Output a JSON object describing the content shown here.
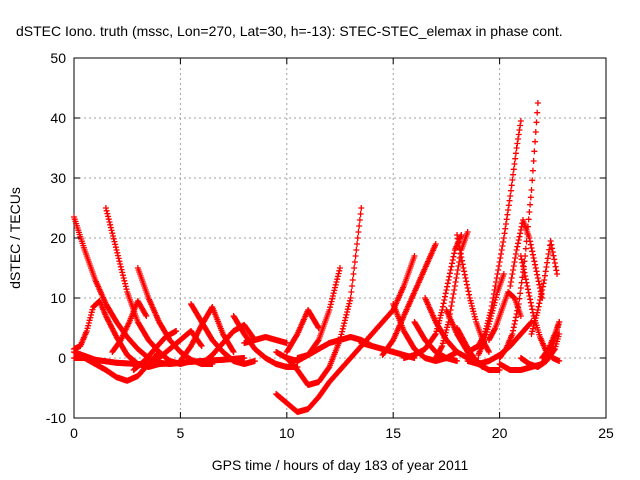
{
  "chart_data": {
    "type": "scatter",
    "title": "dSTEC Iono. truth (mssc, Lon=270, Lat=30, h=-13): STEC-STEC_elemax in phase cont.",
    "xlabel": "GPS time / hours of day 183 of year 2011",
    "ylabel": "dSTEC  / TECUs",
    "xlim": [
      0,
      25
    ],
    "ylim": [
      -10,
      50
    ],
    "xticks": [
      0,
      5,
      10,
      15,
      20,
      25
    ],
    "yticks": [
      -10,
      0,
      10,
      20,
      30,
      40,
      50
    ],
    "grid": true,
    "marker": "plus",
    "color": "#ff0000",
    "series": [
      {
        "x": [
          0.0,
          0.5,
          1.0,
          1.5,
          2.0,
          2.5,
          3.0,
          3.5,
          4.0,
          4.5,
          5.0
        ],
        "y": [
          23.5,
          18.0,
          13.0,
          9.0,
          6.0,
          3.5,
          1.5,
          0.0,
          -0.8,
          -1.0,
          -0.8
        ]
      },
      {
        "x": [
          0.0,
          0.3,
          0.6,
          0.9,
          1.2,
          1.5,
          2.0,
          2.5,
          3.0,
          3.5,
          4.0
        ],
        "y": [
          1.5,
          2.0,
          4.5,
          8.5,
          9.5,
          7.0,
          3.5,
          0.5,
          -1.0,
          -1.5,
          -1.0
        ]
      },
      {
        "x": [
          0.0,
          0.5,
          1.0,
          1.5,
          2.0,
          2.5,
          3.0,
          3.5,
          4.0
        ],
        "y": [
          0.0,
          0.0,
          -1.0,
          -2.0,
          -3.2,
          -3.8,
          -3.0,
          -1.0,
          1.0
        ]
      },
      {
        "x": [
          0.0,
          1.0,
          2.0,
          3.0,
          4.0,
          5.0,
          6.0,
          7.0,
          8.0
        ],
        "y": [
          1.0,
          -0.3,
          -0.8,
          -1.0,
          -1.0,
          -0.8,
          -0.5,
          -0.3,
          0.0
        ]
      },
      {
        "x": [
          1.5,
          2.0,
          2.5,
          3.0,
          3.5,
          4.0,
          4.5,
          5.0,
          5.5
        ],
        "y": [
          25.0,
          18.0,
          11.0,
          6.0,
          3.0,
          1.0,
          -0.5,
          -1.0,
          -0.5
        ]
      },
      {
        "x": [
          1.8,
          2.2,
          2.6,
          3.0,
          3.4
        ],
        "y": [
          1.0,
          3.0,
          6.0,
          9.5,
          7.0
        ]
      },
      {
        "x": [
          3.0,
          3.5,
          4.0,
          4.5,
          5.0,
          5.5,
          6.0,
          6.5
        ],
        "y": [
          15.0,
          10.0,
          6.0,
          3.0,
          1.0,
          -0.3,
          -1.0,
          -1.0
        ]
      },
      {
        "x": [
          2.8,
          3.3,
          3.8,
          4.3,
          4.8
        ],
        "y": [
          -2.0,
          -0.5,
          1.5,
          3.5,
          4.5
        ]
      },
      {
        "x": [
          3.5,
          4.0,
          4.5,
          5.0,
          5.5,
          6.0
        ],
        "y": [
          -1.0,
          0.0,
          1.5,
          3.0,
          4.5,
          2.0
        ]
      },
      {
        "x": [
          5.0,
          5.5,
          6.0,
          6.5,
          7.0,
          7.5
        ],
        "y": [
          -0.5,
          2.0,
          5.5,
          8.5,
          4.0,
          1.0
        ]
      },
      {
        "x": [
          5.5,
          6.0,
          6.5,
          7.0,
          7.5,
          8.0,
          8.5
        ],
        "y": [
          9.0,
          6.0,
          3.0,
          1.0,
          -0.5,
          -1.0,
          -0.5
        ]
      },
      {
        "x": [
          6.0,
          6.5,
          7.0,
          7.5,
          8.0,
          8.5
        ],
        "y": [
          -1.0,
          0.5,
          2.5,
          4.5,
          5.5,
          3.0
        ]
      },
      {
        "x": [
          7.5,
          8.0,
          8.5,
          9.0,
          9.5,
          10.0,
          10.5
        ],
        "y": [
          7.0,
          4.0,
          1.5,
          0.0,
          -1.0,
          -1.5,
          -1.5
        ]
      },
      {
        "x": [
          8.0,
          8.5,
          9.0,
          9.5,
          10.0
        ],
        "y": [
          2.5,
          3.0,
          3.5,
          3.0,
          2.5
        ]
      },
      {
        "x": [
          9.5,
          10.0,
          10.5,
          11.0,
          11.5,
          12.0
        ],
        "y": [
          -6.0,
          -7.5,
          -9.0,
          -8.5,
          -6.5,
          -4.0
        ]
      },
      {
        "x": [
          12.0,
          13.0,
          14.0,
          15.0,
          15.5,
          16.0
        ],
        "y": [
          -4.0,
          0.0,
          4.0,
          8.0,
          12.0,
          17.0
        ]
      },
      {
        "x": [
          10.0,
          10.5,
          11.0,
          11.5,
          12.0,
          12.5,
          13.0,
          13.5
        ],
        "y": [
          0.0,
          -2.0,
          -4.5,
          -4.0,
          -1.5,
          3.0,
          10.0,
          25.0
        ]
      },
      {
        "x": [
          9.5,
          10.0,
          10.5,
          11.0,
          11.5,
          12.0,
          12.5
        ],
        "y": [
          1.0,
          0.0,
          -0.5,
          0.5,
          3.0,
          8.0,
          15.0
        ]
      },
      {
        "x": [
          10.0,
          10.5,
          11.0,
          11.5
        ],
        "y": [
          1.0,
          4.0,
          8.0,
          5.0
        ]
      },
      {
        "x": [
          10.5,
          11.0,
          11.5,
          12.0,
          12.5,
          13.0,
          13.5,
          14.0
        ],
        "y": [
          0.0,
          0.5,
          1.5,
          2.5,
          3.0,
          3.5,
          3.0,
          2.0
        ]
      },
      {
        "x": [
          13.5,
          14.0,
          14.5,
          15.0,
          15.5,
          16.0
        ],
        "y": [
          2.5,
          2.0,
          1.5,
          1.0,
          0.5,
          0.0
        ]
      },
      {
        "x": [
          14.5,
          15.0,
          15.5,
          16.0,
          16.5,
          17.0
        ],
        "y": [
          0.5,
          3.0,
          7.0,
          11.0,
          15.0,
          19.0
        ]
      },
      {
        "x": [
          15.0,
          15.5,
          16.0,
          16.5,
          17.0,
          17.5,
          18.0
        ],
        "y": [
          9.0,
          4.5,
          1.5,
          0.0,
          -0.5,
          0.0,
          1.0
        ]
      },
      {
        "x": [
          16.0,
          16.5,
          17.0,
          17.5,
          18.0
        ],
        "y": [
          6.0,
          3.0,
          1.0,
          0.0,
          -0.5
        ]
      },
      {
        "x": [
          16.5,
          17.0,
          17.5,
          18.0,
          18.5,
          19.0
        ],
        "y": [
          10.0,
          6.0,
          3.0,
          1.0,
          0.0,
          -0.5
        ]
      },
      {
        "x": [
          15.5,
          16.0,
          16.5,
          17.0,
          17.3,
          17.6,
          17.9,
          18.2
        ],
        "y": [
          0.0,
          0.5,
          1.5,
          4.0,
          8.0,
          13.0,
          18.0,
          20.5
        ]
      },
      {
        "x": [
          17.0,
          17.3,
          17.6,
          17.9,
          18.2,
          18.5
        ],
        "y": [
          0.0,
          2.0,
          6.0,
          12.0,
          18.0,
          21.0
        ]
      },
      {
        "x": [
          17.5,
          18.0,
          18.5,
          19.0,
          19.5,
          20.0
        ],
        "y": [
          8.0,
          4.0,
          1.0,
          -1.0,
          -2.0,
          -2.0
        ]
      },
      {
        "x": [
          18.0,
          18.3,
          18.6,
          18.9,
          19.2
        ],
        "y": [
          5.0,
          3.0,
          1.0,
          -0.5,
          -1.5
        ]
      },
      {
        "x": [
          18.0,
          18.3,
          18.6,
          18.9,
          19.2,
          19.5
        ],
        "y": [
          20.5,
          15.0,
          10.0,
          6.0,
          3.0,
          1.0
        ]
      },
      {
        "x": [
          18.5,
          19.0,
          19.5,
          20.0,
          20.5,
          21.0,
          21.5
        ],
        "y": [
          -0.5,
          -1.0,
          -0.5,
          0.5,
          2.0,
          4.0,
          6.0
        ]
      },
      {
        "x": [
          18.5,
          19.0,
          19.3,
          19.6,
          19.9,
          20.2,
          20.5,
          20.8,
          21.0
        ],
        "y": [
          1.0,
          2.0,
          4.0,
          8.0,
          14.0,
          20.0,
          27.0,
          35.0,
          39.5
        ]
      },
      {
        "x": [
          19.0,
          19.3,
          19.6,
          19.9,
          20.2
        ],
        "y": [
          0.5,
          3.0,
          7.0,
          11.0,
          14.0
        ]
      },
      {
        "x": [
          19.5,
          19.8,
          20.1,
          20.4,
          20.7,
          21.0
        ],
        "y": [
          3.0,
          5.0,
          8.0,
          11.0,
          10.0,
          7.0
        ]
      },
      {
        "x": [
          20.0,
          20.3,
          20.6,
          20.9,
          21.2,
          21.5,
          21.8
        ],
        "y": [
          0.0,
          1.5,
          4.0,
          9.0,
          17.0,
          28.0,
          42.5
        ]
      },
      {
        "x": [
          20.5,
          20.8,
          21.1,
          21.4,
          21.7,
          22.0
        ],
        "y": [
          12.0,
          18.0,
          23.0,
          20.0,
          15.0,
          10.0
        ]
      },
      {
        "x": [
          21.0,
          21.3,
          21.6,
          21.9,
          22.2,
          22.5,
          22.8
        ],
        "y": [
          17.0,
          12.0,
          7.0,
          3.5,
          1.0,
          0.0,
          -0.5
        ]
      },
      {
        "x": [
          21.5,
          21.8,
          22.1,
          22.4,
          22.7
        ],
        "y": [
          4.0,
          8.0,
          13.0,
          19.5,
          14.0
        ]
      },
      {
        "x": [
          20.0,
          20.5,
          21.0,
          21.5,
          22.0,
          22.5,
          22.8
        ],
        "y": [
          -1.0,
          -2.0,
          -2.0,
          -1.5,
          -1.0,
          2.0,
          6.0
        ]
      },
      {
        "x": [
          21.0,
          21.4,
          21.8,
          22.2,
          22.6,
          22.8
        ],
        "y": [
          0.0,
          -1.0,
          -1.5,
          -0.5,
          1.5,
          4.0
        ]
      },
      {
        "x": [
          22.0,
          22.3,
          22.6,
          22.8
        ],
        "y": [
          0.0,
          1.5,
          4.0,
          6.0
        ]
      }
    ]
  }
}
